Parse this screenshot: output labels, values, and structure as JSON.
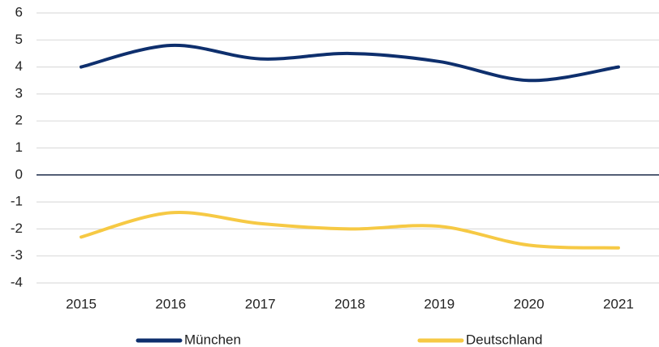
{
  "chart_data": {
    "type": "line",
    "categories": [
      "2015",
      "2016",
      "2017",
      "2018",
      "2019",
      "2020",
      "2021"
    ],
    "series": [
      {
        "name": "München",
        "color": "#0e2f6d",
        "values": [
          4.0,
          4.8,
          4.3,
          4.5,
          4.2,
          3.5,
          4.0
        ]
      },
      {
        "name": "Deutschland",
        "color": "#f6c944",
        "values": [
          -2.3,
          -1.4,
          -1.8,
          -2.0,
          -1.9,
          -2.6,
          -2.7
        ]
      }
    ],
    "ylim": [
      -4,
      6
    ],
    "yticks": [
      -4,
      -3,
      -2,
      -1,
      0,
      1,
      2,
      3,
      4,
      5,
      6
    ],
    "grid": true,
    "legend": "bottom"
  }
}
